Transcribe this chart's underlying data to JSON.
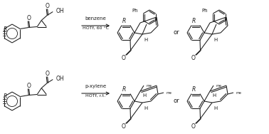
{
  "background_color": "#ffffff",
  "fig_width": 3.78,
  "fig_height": 1.88,
  "dpi": 100,
  "top_reagent": "benzene",
  "top_condition": "HOTf, 60 °C",
  "bot_reagent": "p-xylene",
  "bot_condition": "HOTf, r.t.",
  "or_text": "or",
  "line_color": "#1a1a1a",
  "lw": 0.75
}
